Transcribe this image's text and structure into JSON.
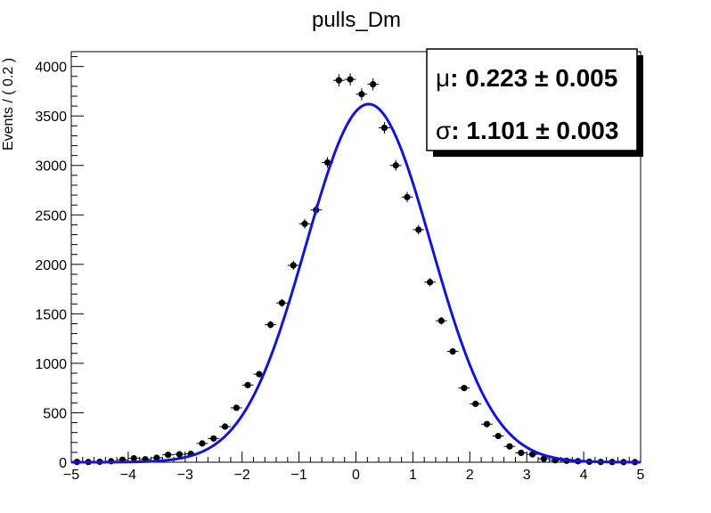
{
  "chart_data": {
    "type": "scatter",
    "title": "pulls_Dm",
    "xlabel": "",
    "ylabel": "Events / ( 0.2 )",
    "xlim": [
      -5,
      5
    ],
    "ylim": [
      0,
      4150
    ],
    "bin_width": 0.2,
    "x_ticks": [
      -5,
      -4,
      -3,
      -2,
      -1,
      0,
      1,
      2,
      3,
      4,
      5
    ],
    "x_tick_labels": [
      "−5",
      "−4",
      "−3",
      "−2",
      "−1",
      "0",
      "1",
      "2",
      "3",
      "4",
      "5"
    ],
    "y_ticks": [
      0,
      500,
      1000,
      1500,
      2000,
      2500,
      3000,
      3500,
      4000
    ],
    "y_tick_labels": [
      "0",
      "500",
      "1000",
      "1500",
      "2000",
      "2500",
      "3000",
      "3500",
      "4000"
    ],
    "grid": false,
    "series": [
      {
        "kind": "points",
        "color": "#000000",
        "x": [
          -4.9,
          -4.7,
          -4.5,
          -4.3,
          -4.1,
          -3.9,
          -3.7,
          -3.5,
          -3.3,
          -3.1,
          -2.9,
          -2.7,
          -2.5,
          -2.3,
          -2.1,
          -1.9,
          -1.7,
          -1.5,
          -1.3,
          -1.1,
          -0.9,
          -0.7,
          -0.5,
          -0.3,
          -0.1,
          0.1,
          0.3,
          0.5,
          0.7,
          0.9,
          1.1,
          1.3,
          1.5,
          1.7,
          1.9,
          2.1,
          2.3,
          2.5,
          2.7,
          2.9,
          3.1,
          3.3,
          3.5,
          3.7,
          3.9,
          4.1,
          4.3,
          4.5,
          4.7,
          4.9
        ],
        "y": [
          3,
          2,
          5,
          10,
          25,
          40,
          30,
          45,
          75,
          80,
          85,
          190,
          240,
          360,
          550,
          780,
          890,
          1390,
          1610,
          1990,
          2410,
          2550,
          3030,
          3860,
          3870,
          3720,
          3820,
          3380,
          3000,
          2680,
          2350,
          1820,
          1430,
          1120,
          750,
          590,
          385,
          265,
          160,
          95,
          80,
          35,
          20,
          15,
          10,
          5,
          3,
          2,
          1,
          1
        ],
        "y_err": [
          2,
          2,
          3,
          4,
          6,
          7,
          6,
          7,
          9,
          9,
          10,
          14,
          16,
          19,
          24,
          28,
          30,
          37,
          40,
          45,
          50,
          51,
          55,
          62,
          62,
          61,
          62,
          58,
          55,
          52,
          49,
          43,
          38,
          34,
          28,
          25,
          20,
          16,
          13,
          10,
          9,
          6,
          5,
          4,
          3,
          3,
          2,
          2,
          1,
          1
        ]
      },
      {
        "kind": "fit-curve",
        "color": "#1414d8",
        "mu": 0.223,
        "sigma": 1.101,
        "peak": 3620
      }
    ],
    "stats": {
      "mu_symbol": "μ",
      "mu_text": ": 0.223 ± 0.005",
      "sigma_symbol": "σ",
      "sigma_text": ": 1.101 ± 0.003",
      "placement": "top-right"
    }
  }
}
